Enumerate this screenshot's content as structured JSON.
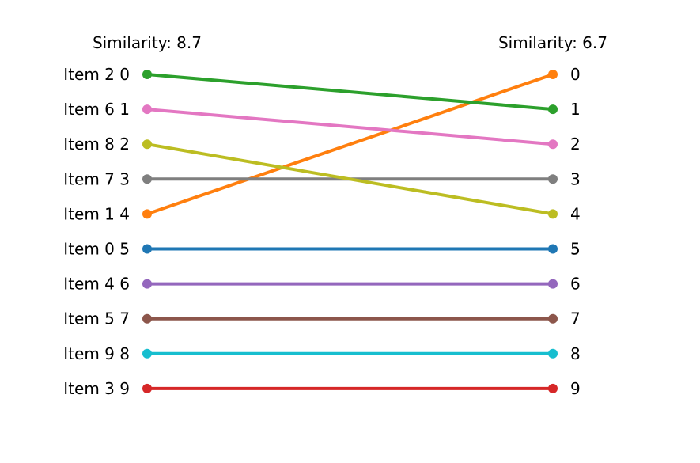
{
  "chart_data": {
    "type": "line",
    "subtype": "slope",
    "left_title": "Similarity: 8.7",
    "right_title": "Similarity: 6.7",
    "left_label_prefix": "Item ",
    "lines": [
      {
        "item": "Item 0",
        "left_rank": 5,
        "right_rank": 5,
        "color": "#1f77b4"
      },
      {
        "item": "Item 1",
        "left_rank": 4,
        "right_rank": 0,
        "color": "#ff7f0e"
      },
      {
        "item": "Item 2",
        "left_rank": 0,
        "right_rank": 1,
        "color": "#2ca02c"
      },
      {
        "item": "Item 3",
        "left_rank": 9,
        "right_rank": 9,
        "color": "#d62728"
      },
      {
        "item": "Item 4",
        "left_rank": 6,
        "right_rank": 6,
        "color": "#9467bd"
      },
      {
        "item": "Item 5",
        "left_rank": 7,
        "right_rank": 7,
        "color": "#8c564b"
      },
      {
        "item": "Item 6",
        "left_rank": 1,
        "right_rank": 2,
        "color": "#e377c2"
      },
      {
        "item": "Item 7",
        "left_rank": 3,
        "right_rank": 3,
        "color": "#7f7f7f"
      },
      {
        "item": "Item 8",
        "left_rank": 2,
        "right_rank": 4,
        "color": "#bcbd22"
      },
      {
        "item": "Item 9",
        "left_rank": 8,
        "right_rank": 8,
        "color": "#17becf"
      }
    ],
    "left_labels": [
      "Item 2 0",
      "Item 6 1",
      "Item 8 2",
      "Item 7 3",
      "Item 1 4",
      "Item 0 5",
      "Item 4 6",
      "Item 5 7",
      "Item 9 8",
      "Item 3 9"
    ],
    "right_labels": [
      "0",
      "1",
      "2",
      "3",
      "4",
      "5",
      "6",
      "7",
      "8",
      "9"
    ],
    "grid": false,
    "axes_visible": false
  }
}
